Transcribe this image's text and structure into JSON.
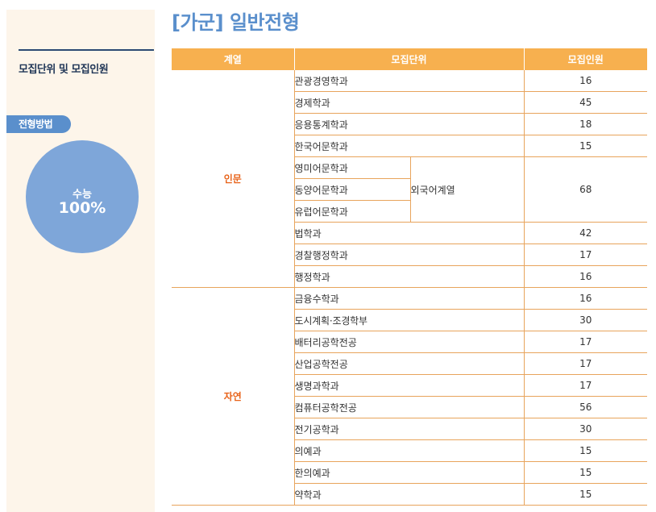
{
  "sidebar": {
    "heading": "모집단위 및 모집인원",
    "method_badge": "전형방법",
    "circle_label": "수능",
    "circle_value": "100%"
  },
  "title": "[가군] 일반전형",
  "table": {
    "headers": [
      "계열",
      "모집단위",
      "모집인원"
    ],
    "groups": {
      "humanities": "인문",
      "science": "자연"
    },
    "humanities_rows": [
      {
        "dept": "관광경영학과",
        "count": "16"
      },
      {
        "dept": "경제학과",
        "count": "45"
      },
      {
        "dept": "응용통계학과",
        "count": "18"
      },
      {
        "dept": "한국어문학과",
        "count": "15"
      }
    ],
    "foreign_lang": {
      "depts": [
        "영미어문학과",
        "동양어문학과",
        "유럽어문학과"
      ],
      "group_name": "외국어계열",
      "count": "68"
    },
    "humanities_rows2": [
      {
        "dept": "법학과",
        "count": "42"
      },
      {
        "dept": "경찰행정학과",
        "count": "17"
      },
      {
        "dept": "행정학과",
        "count": "16"
      }
    ],
    "science_rows": [
      {
        "dept": "금융수학과",
        "count": "16"
      },
      {
        "dept": "도시계획·조경학부",
        "count": "30"
      },
      {
        "dept": "배터리공학전공",
        "count": "17"
      },
      {
        "dept": "산업공학전공",
        "count": "17"
      },
      {
        "dept": "생명과학과",
        "count": "17"
      },
      {
        "dept": "컴퓨터공학전공",
        "count": "56"
      },
      {
        "dept": "전기공학과",
        "count": "30"
      },
      {
        "dept": "의예과",
        "count": "15"
      },
      {
        "dept": "한의예과",
        "count": "15"
      },
      {
        "dept": "약학과",
        "count": "15"
      }
    ]
  }
}
